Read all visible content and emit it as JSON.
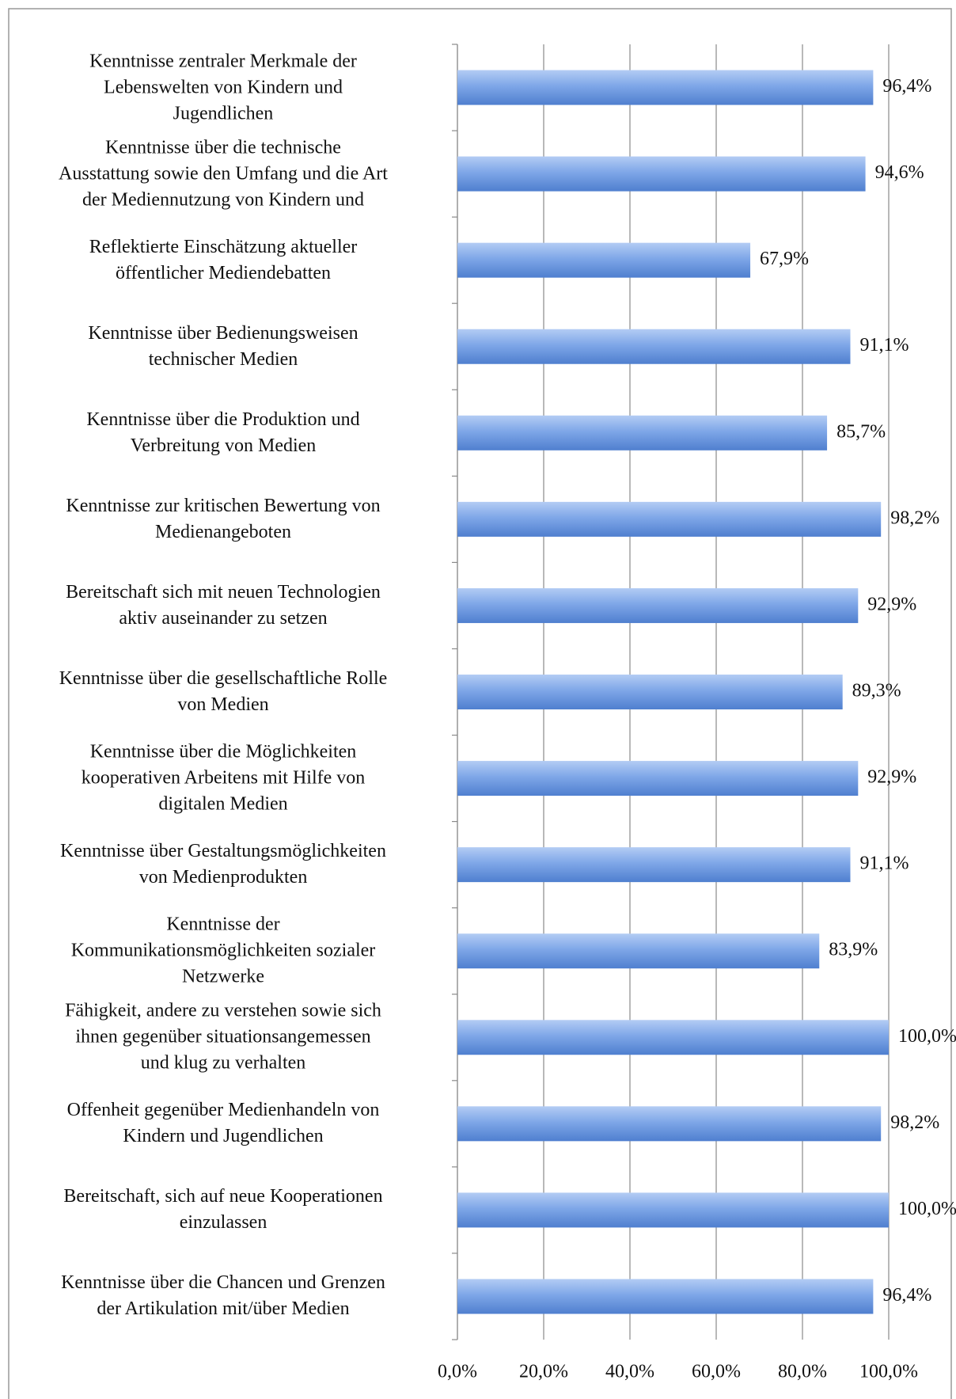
{
  "chart_data": {
    "type": "barh",
    "categories": [
      "Kenntnisse zentraler Merkmale der\nLebenswelten von Kindern und\nJugendlichen",
      "Kenntnisse über die technische\nAusstattung sowie den Umfang und die Art\nder Mediennutzung von Kindern und",
      "Reflektierte Einschätzung  aktueller\nöffentlicher Mediendebatten",
      "Kenntnisse über Bedienungsweisen\ntechnischer Medien",
      "Kenntnisse über die Produktion und\nVerbreitung von Medien",
      "Kenntnisse zur kritischen Bewertung von\nMedienangeboten",
      "Bereitschaft sich mit neuen Technologien\naktiv auseinander zu setzen",
      "Kenntnisse über die gesellschaftliche Rolle\nvon Medien",
      "Kenntnisse über die Möglichkeiten\nkooperativen Arbeitens mit Hilfe von\ndigitalen Medien",
      "Kenntnisse über Gestaltungsmöglichkeiten\nvon Medienprodukten",
      "Kenntnisse der\nKommunikationsmöglichkeiten sozialer\nNetzwerke",
      "Fähigkeit, andere zu verstehen sowie sich\nihnen gegenüber situationsangemessen\nund klug zu verhalten",
      "Offenheit gegenüber Medienhandeln von\nKindern und Jugendlichen",
      "Bereitschaft, sich auf neue Kooperationen\neinzulassen",
      "Kenntnisse über die Chancen und Grenzen\nder Artikulation mit/über Medien"
    ],
    "values": [
      96.4,
      94.6,
      67.9,
      91.1,
      85.7,
      98.2,
      92.9,
      89.3,
      92.9,
      91.1,
      83.9,
      100.0,
      98.2,
      100.0,
      96.4
    ],
    "value_labels": [
      "96,4%",
      "94,6%",
      "67,9%",
      "91,1%",
      "85,7%",
      "98,2%",
      "92,9%",
      "89,3%",
      "92,9%",
      "91,1%",
      "83,9%",
      "100,0%",
      "98,2%",
      "100,0%",
      "96,4%"
    ],
    "color": "#6f9be0",
    "xlim": [
      0,
      100
    ],
    "xticks": [
      {
        "value": 0,
        "label": "0,0%"
      },
      {
        "value": 20,
        "label": "20,0%"
      },
      {
        "value": 40,
        "label": "40,0%"
      },
      {
        "value": 60,
        "label": "60,0%"
      },
      {
        "value": 80,
        "label": "80,0%"
      },
      {
        "value": 100,
        "label": "100,0%"
      }
    ],
    "grid": true
  }
}
